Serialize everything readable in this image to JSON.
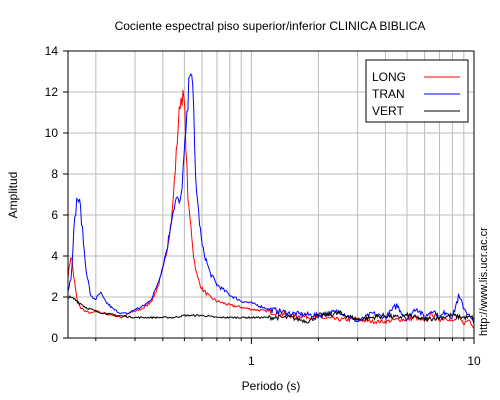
{
  "chart_data": {
    "type": "line",
    "title": "Cociente espectral piso superior/inferior  CLINICA BIBLICA",
    "xlabel": "Periodo (s)",
    "ylabel": "Amplitud",
    "xscale": "log",
    "xlim": [
      0.15,
      10
    ],
    "ylim": [
      0,
      14
    ],
    "x_ticks": [
      {
        "value": 1,
        "label": "1"
      },
      {
        "value": 10,
        "label": "10"
      }
    ],
    "y_ticks": [
      0,
      2,
      4,
      6,
      8,
      10,
      12,
      14
    ],
    "grid": true,
    "legend_position": "top-right",
    "watermark": "http://www.lis.ucr.ac.cr",
    "series": [
      {
        "name": "LONG",
        "color": "#ff0000",
        "x": [
          0.15,
          0.155,
          0.16,
          0.165,
          0.17,
          0.18,
          0.19,
          0.2,
          0.22,
          0.24,
          0.26,
          0.28,
          0.3,
          0.32,
          0.34,
          0.36,
          0.38,
          0.4,
          0.42,
          0.44,
          0.46,
          0.47,
          0.48,
          0.49,
          0.5,
          0.51,
          0.52,
          0.53,
          0.54,
          0.55,
          0.57,
          0.6,
          0.65,
          0.7,
          0.8,
          0.9,
          1.0,
          1.2,
          1.5,
          2.0,
          2.5,
          3.0,
          3.5,
          4.0,
          4.5,
          5.0,
          5.5,
          6.0,
          6.5,
          7.0,
          7.5,
          8.0,
          8.5,
          9.0,
          9.5,
          10.0
        ],
        "y": [
          3.0,
          4.1,
          2.8,
          1.8,
          1.5,
          1.3,
          1.2,
          1.3,
          1.2,
          1.1,
          1.0,
          1.2,
          1.3,
          1.4,
          1.6,
          1.9,
          2.5,
          3.3,
          4.5,
          6.0,
          9.0,
          10.5,
          11.7,
          11.8,
          11.5,
          9.0,
          6.5,
          5.8,
          5.0,
          4.0,
          3.0,
          2.4,
          2.0,
          1.8,
          1.6,
          1.5,
          1.4,
          1.3,
          1.1,
          1.0,
          0.9,
          0.9,
          0.8,
          0.8,
          0.9,
          0.9,
          1.0,
          0.8,
          1.2,
          0.9,
          1.0,
          0.8,
          1.0,
          0.7,
          0.9,
          0.5
        ]
      },
      {
        "name": "TRAN",
        "color": "#0000ff",
        "x": [
          0.15,
          0.155,
          0.16,
          0.165,
          0.17,
          0.175,
          0.18,
          0.19,
          0.2,
          0.21,
          0.22,
          0.24,
          0.26,
          0.28,
          0.3,
          0.32,
          0.34,
          0.36,
          0.38,
          0.4,
          0.42,
          0.44,
          0.46,
          0.48,
          0.5,
          0.52,
          0.53,
          0.54,
          0.55,
          0.56,
          0.58,
          0.6,
          0.65,
          0.7,
          0.8,
          0.9,
          1.0,
          1.2,
          1.5,
          2.0,
          2.5,
          3.0,
          3.5,
          4.0,
          4.5,
          5.0,
          5.5,
          6.0,
          6.5,
          7.0,
          7.5,
          8.0,
          8.5,
          9.0,
          9.5,
          10.0
        ],
        "y": [
          2.3,
          3.0,
          5.5,
          6.9,
          6.5,
          5.0,
          3.5,
          2.0,
          1.9,
          2.2,
          1.8,
          1.4,
          1.2,
          1.2,
          1.4,
          1.5,
          1.7,
          2.0,
          2.7,
          3.5,
          4.5,
          6.0,
          6.8,
          6.5,
          9.0,
          11.5,
          13.5,
          13.0,
          11.0,
          8.0,
          6.0,
          4.5,
          3.2,
          2.6,
          2.1,
          1.8,
          1.7,
          1.4,
          1.2,
          1.1,
          1.3,
          0.8,
          1.2,
          1.0,
          1.6,
          0.9,
          1.5,
          1.0,
          1.4,
          1.0,
          1.3,
          1.0,
          2.0,
          1.5,
          1.1,
          0.7
        ]
      },
      {
        "name": "VERT",
        "color": "#000000",
        "x": [
          0.15,
          0.16,
          0.17,
          0.18,
          0.2,
          0.22,
          0.25,
          0.3,
          0.35,
          0.4,
          0.45,
          0.5,
          0.6,
          0.7,
          0.8,
          0.9,
          1.0,
          1.2,
          1.5,
          1.8,
          2.0,
          2.5,
          3.0,
          3.5,
          4.0,
          4.5,
          5.0,
          5.5,
          6.0,
          7.0,
          8.0,
          9.0,
          10.0
        ],
        "y": [
          2.0,
          1.9,
          1.7,
          1.5,
          1.3,
          1.2,
          1.1,
          1.0,
          1.0,
          1.0,
          1.0,
          1.1,
          1.1,
          1.0,
          1.0,
          1.0,
          1.0,
          1.0,
          1.0,
          0.8,
          1.1,
          1.2,
          0.9,
          1.0,
          1.1,
          1.0,
          1.1,
          1.0,
          0.9,
          1.0,
          1.1,
          1.0,
          1.0
        ]
      }
    ]
  }
}
